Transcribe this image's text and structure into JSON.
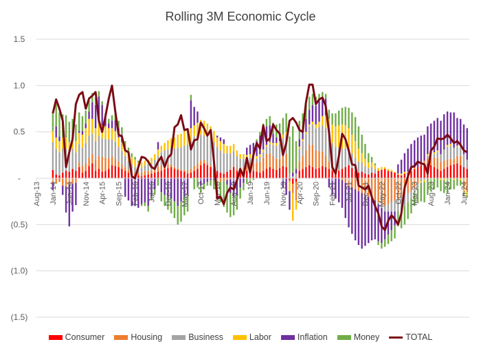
{
  "chart_data": {
    "type": "bar",
    "subtype": "stacked-bar-with-line",
    "title": "Rolling 3M Economic Cycle",
    "xlabel": "",
    "ylabel": "",
    "ylim": [
      -1.5,
      1.5
    ],
    "y_ticks": [
      1.5,
      1.0,
      0.5,
      0,
      -0.5,
      -1.0,
      -1.5
    ],
    "y_tick_labels": [
      "1.5",
      "1.0",
      "0.5",
      "-",
      "(0.5)",
      "(1.0)",
      "(1.5)"
    ],
    "x_tick_labels": [
      "Aug-13",
      "Jan-14",
      "Jun-14",
      "Nov-14",
      "Apr-15",
      "Sep-15",
      "Feb-16",
      "Jul-16",
      "Dec-16",
      "May-17",
      "Oct-17",
      "Mar-18",
      "Aug-18",
      "Jan-19",
      "Jun-19",
      "Nov-19",
      "Apr-20",
      "Sep-20",
      "Feb-21",
      "Jul-21",
      "Dec-21",
      "May-22",
      "Oct-22",
      "Mar-23",
      "Aug-23",
      "Jan-24",
      "Jun-24"
    ],
    "grid": true,
    "legend_position": "bottom",
    "start_month": "Jan-14",
    "series_colors": {
      "Consumer": "#FF0000",
      "Housing": "#ED7D31",
      "Business": "#A5A5A5",
      "Labor": "#FFC000",
      "Inflation": "#7030A0",
      "Money": "#70AD47",
      "TOTAL": "#7B0A14"
    },
    "series": [
      {
        "name": "Consumer",
        "values": [
          0.09,
          0.04,
          0.03,
          0.06,
          0.08,
          0.07,
          0.1,
          0.08,
          0.12,
          0.06,
          0.08,
          0.13,
          0.16,
          0.08,
          0.1,
          0.07,
          0.08,
          0.1,
          0.14,
          0.13,
          0.12,
          0.1,
          0.08,
          0.06,
          0.05,
          0.04,
          0.03,
          0.02,
          0.03,
          0.04,
          0.05,
          0.06,
          0.07,
          0.08,
          0.1,
          0.11,
          0.12,
          0.1,
          0.09,
          0.08,
          0.07,
          0.05,
          0.06,
          0.08,
          0.1,
          0.14,
          0.16,
          0.14,
          0.12,
          0.1,
          0.08,
          0.06,
          0.05,
          0.07,
          0.09,
          0.12,
          0.08,
          0.06,
          0.07,
          0.08,
          0.1,
          0.08,
          0.07,
          0.06,
          0.08,
          0.1,
          0.12,
          0.1,
          0.09,
          0.11,
          0.13,
          0.12,
          -0.02,
          -0.06,
          -0.04,
          0.08,
          0.1,
          0.12,
          0.14,
          0.12,
          0.1,
          0.11,
          0.13,
          0.12,
          0.1,
          0.08,
          0.07,
          0.08,
          0.1,
          0.12,
          0.14,
          0.11,
          0.08,
          0.06,
          0.07,
          0.05,
          0.04,
          0.06,
          0.05,
          0.08,
          0.09,
          0.1,
          0.08,
          0.07,
          0.06,
          0.04,
          0.03,
          0.05,
          0.06,
          0.08,
          0.1,
          0.12,
          0.14,
          0.15,
          0.16,
          0.14,
          0.12,
          0.1,
          0.08,
          0.1,
          0.12,
          0.14,
          0.15,
          0.16,
          0.14,
          0.12,
          0.1
        ]
      },
      {
        "name": "Housing",
        "values": [
          -0.05,
          -0.06,
          -0.04,
          -0.08,
          -0.09,
          -0.07,
          -0.06,
          -0.05,
          0.05,
          0.07,
          0.08,
          0.09,
          0.1,
          0.12,
          0.14,
          0.16,
          0.14,
          0.12,
          0.1,
          0.08,
          0.06,
          0.05,
          0.04,
          0.03,
          0.02,
          0.02,
          0.03,
          0.04,
          0.05,
          0.04,
          0.03,
          0.04,
          0.05,
          0.06,
          0.05,
          0.04,
          0.03,
          0.02,
          0.02,
          0.01,
          0.02,
          0.03,
          0.04,
          0.05,
          0.06,
          0.05,
          0.04,
          0.03,
          0.02,
          0.01,
          -0.02,
          -0.04,
          -0.03,
          -0.02,
          -0.01,
          0.01,
          0.02,
          0.03,
          0.04,
          0.05,
          0.06,
          0.08,
          0.1,
          0.12,
          0.14,
          0.16,
          0.15,
          0.14,
          0.12,
          0.1,
          0.12,
          0.14,
          -0.02,
          -0.1,
          -0.2,
          0.1,
          0.14,
          0.18,
          0.22,
          0.24,
          0.2,
          0.18,
          0.16,
          0.12,
          0.08,
          0.04,
          0.02,
          0.01,
          -0.02,
          -0.05,
          -0.08,
          -0.1,
          -0.12,
          -0.14,
          -0.16,
          -0.18,
          -0.2,
          -0.22,
          -0.24,
          -0.26,
          -0.28,
          -0.3,
          -0.28,
          -0.26,
          -0.24,
          -0.22,
          -0.2,
          -0.18,
          -0.16,
          -0.14,
          -0.1,
          -0.06,
          0.02,
          0.04,
          0.06,
          0.08,
          0.1,
          0.12,
          0.1,
          0.09,
          0.08,
          0.07,
          0.06,
          0.08,
          0.1,
          -0.12,
          -0.15
        ]
      },
      {
        "name": "Business",
        "values": [
          0.3,
          0.28,
          0.25,
          0.26,
          0.24,
          0.2,
          0.22,
          0.2,
          0.2,
          0.2,
          0.22,
          0.24,
          0.22,
          0.2,
          0.22,
          0.2,
          0.2,
          0.2,
          0.18,
          0.18,
          0.16,
          0.14,
          0.12,
          0.1,
          0.08,
          0.06,
          0.04,
          0.05,
          0.06,
          0.07,
          0.08,
          0.1,
          0.12,
          0.14,
          0.15,
          0.16,
          0.18,
          0.2,
          0.22,
          0.24,
          0.26,
          0.28,
          0.3,
          0.32,
          0.3,
          0.28,
          0.26,
          0.28,
          0.3,
          0.28,
          0.26,
          0.24,
          0.22,
          0.2,
          0.18,
          0.16,
          0.14,
          0.12,
          0.1,
          0.08,
          0.06,
          0.05,
          0.04,
          0.05,
          0.06,
          0.08,
          0.1,
          0.12,
          0.14,
          0.16,
          0.18,
          0.2,
          0.05,
          0.02,
          0.05,
          0.14,
          0.16,
          0.18,
          0.2,
          0.22,
          0.24,
          0.26,
          0.28,
          0.3,
          0.28,
          0.26,
          0.25,
          0.24,
          0.22,
          0.2,
          0.18,
          0.16,
          0.14,
          0.12,
          0.1,
          0.08,
          0.07,
          0.06,
          0.05,
          -0.02,
          -0.04,
          -0.06,
          -0.08,
          -0.1,
          -0.12,
          -0.14,
          -0.16,
          -0.12,
          -0.1,
          -0.08,
          -0.06,
          -0.04,
          -0.03,
          -0.02,
          0.02,
          0.03,
          0.04,
          0.06,
          0.08,
          0.12,
          0.14,
          0.14,
          0.12,
          0.1,
          0.12,
          0.14,
          0.1
        ]
      },
      {
        "name": "Labor",
        "values": [
          0.12,
          0.12,
          0.12,
          0.12,
          0.12,
          0.12,
          0.12,
          0.12,
          0.12,
          0.14,
          0.16,
          0.18,
          0.16,
          0.14,
          0.14,
          0.14,
          0.14,
          0.12,
          0.12,
          0.12,
          0.1,
          0.1,
          0.1,
          0.09,
          0.08,
          0.08,
          0.07,
          0.06,
          0.05,
          0.05,
          0.06,
          0.06,
          0.07,
          0.07,
          0.08,
          0.1,
          0.1,
          0.12,
          0.14,
          0.15,
          0.16,
          0.16,
          0.14,
          0.12,
          0.14,
          0.16,
          0.16,
          0.14,
          0.12,
          0.12,
          0.1,
          0.1,
          0.1,
          0.08,
          0.08,
          0.08,
          0.06,
          0.05,
          0.05,
          0.04,
          0.04,
          0.03,
          0.03,
          0.03,
          0.03,
          0.02,
          0.02,
          0.02,
          0.03,
          0.03,
          0.04,
          0.04,
          -0.1,
          -0.3,
          -0.1,
          0.02,
          0.02,
          0.02,
          0.02,
          0.03,
          0.04,
          0.06,
          0.1,
          0.14,
          0.18,
          0.2,
          0.22,
          0.24,
          0.26,
          0.25,
          0.22,
          0.2,
          0.18,
          0.14,
          0.1,
          0.08,
          0.06,
          0.05,
          0.04,
          0.03,
          0.03,
          0.02,
          0.02,
          0.02,
          0.01,
          0.01,
          0.02,
          0.02,
          0.01,
          0.01,
          0.01,
          -0.01,
          -0.02,
          -0.02,
          0.02,
          0.02,
          0.02,
          0.02,
          -0.02,
          -0.02,
          0.02,
          0.02,
          -0.02,
          0.01,
          -0.02,
          -0.03,
          -0.04
        ]
      },
      {
        "name": "Inflation",
        "values": [
          -0.08,
          0.12,
          0.05,
          -0.1,
          -0.28,
          -0.45,
          -0.3,
          -0.24,
          0.02,
          0.04,
          0.05,
          0.08,
          0.18,
          0.25,
          0.28,
          0.22,
          0.1,
          0.05,
          0.08,
          0.12,
          0.1,
          0.08,
          -0.2,
          -0.24,
          -0.3,
          -0.3,
          -0.32,
          -0.28,
          -0.26,
          -0.3,
          -0.2,
          -0.12,
          0.08,
          -0.15,
          -0.18,
          -0.2,
          -0.22,
          -0.25,
          -0.3,
          -0.25,
          -0.2,
          -0.18,
          0.3,
          0.2,
          0.12,
          -0.08,
          -0.06,
          -0.04,
          -0.02,
          -0.02,
          0.02,
          0.04,
          0.05,
          -0.05,
          -0.15,
          -0.2,
          -0.18,
          -0.1,
          -0.05,
          0.08,
          0.1,
          0.14,
          0.16,
          0.2,
          0.22,
          0.2,
          0.18,
          0.1,
          0.06,
          0.03,
          -0.1,
          -0.18,
          -0.2,
          0.04,
          0.05,
          0.08,
          0.1,
          0.14,
          0.16,
          0.18,
          0.2,
          0.22,
          0.2,
          0.18,
          -0.1,
          -0.18,
          -0.22,
          -0.26,
          -0.3,
          -0.38,
          -0.45,
          -0.5,
          -0.55,
          -0.58,
          -0.6,
          -0.55,
          -0.5,
          -0.45,
          -0.42,
          -0.4,
          -0.38,
          -0.3,
          -0.25,
          -0.2,
          -0.15,
          0.1,
          0.15,
          0.2,
          0.25,
          0.28,
          0.3,
          0.32,
          0.3,
          0.28,
          0.3,
          0.32,
          0.34,
          0.35,
          0.36,
          0.38,
          0.36,
          0.34,
          0.38,
          0.3,
          0.28,
          0.32,
          0.34
        ]
      },
      {
        "name": "Money",
        "values": [
          0.2,
          0.24,
          0.26,
          0.25,
          0.24,
          0.22,
          0.2,
          0.18,
          0.2,
          0.16,
          0.14,
          0.12,
          0.1,
          0.08,
          0.06,
          0.04,
          0.04,
          0.05,
          0.06,
          0.06,
          0.08,
          0.08,
          0.06,
          0.05,
          0.04,
          0.03,
          0.02,
          -0.02,
          -0.04,
          -0.06,
          -0.04,
          -0.06,
          -0.08,
          -0.1,
          -0.12,
          -0.14,
          -0.16,
          -0.18,
          -0.2,
          -0.22,
          -0.2,
          -0.18,
          0.06,
          -0.12,
          -0.1,
          -0.08,
          -0.06,
          -0.04,
          -0.06,
          -0.1,
          -0.16,
          -0.22,
          -0.28,
          -0.3,
          -0.26,
          -0.2,
          -0.16,
          -0.12,
          -0.08,
          -0.06,
          -0.04,
          -0.02,
          0.02,
          0.04,
          0.06,
          0.08,
          0.1,
          0.12,
          0.14,
          0.16,
          0.18,
          0.2,
          0.4,
          0.5,
          0.3,
          0.2,
          0.18,
          0.16,
          0.14,
          0.12,
          0.1,
          0.08,
          0.06,
          0.05,
          0.1,
          0.12,
          0.14,
          0.16,
          0.18,
          0.2,
          0.22,
          0.24,
          0.26,
          0.24,
          0.2,
          0.16,
          0.1,
          0.06,
          0.02,
          -0.04,
          -0.06,
          -0.08,
          -0.1,
          -0.12,
          -0.14,
          -0.16,
          -0.18,
          -0.2,
          -0.18,
          -0.16,
          -0.14,
          -0.16,
          -0.2,
          -0.22,
          -0.18,
          -0.14,
          -0.12,
          -0.1,
          -0.12,
          -0.14,
          -0.16,
          -0.12,
          -0.1,
          -0.08,
          -0.06,
          -0.04,
          -0.02
        ]
      },
      {
        "name": "TOTAL",
        "values": [
          0.7,
          0.85,
          0.75,
          0.62,
          0.12,
          0.28,
          0.42,
          0.8,
          0.9,
          0.93,
          0.75,
          0.86,
          0.89,
          0.93,
          0.62,
          0.5,
          0.67,
          0.86,
          1.0,
          0.72,
          0.47,
          0.45,
          0.3,
          0.28,
          0.02,
          0.0,
          0.12,
          0.23,
          0.22,
          0.18,
          0.12,
          0.1,
          0.18,
          0.23,
          0.12,
          0.22,
          0.26,
          0.55,
          0.58,
          0.68,
          0.52,
          0.53,
          0.31,
          0.41,
          0.42,
          0.6,
          0.54,
          0.46,
          0.52,
          0.18,
          -0.22,
          -0.2,
          -0.28,
          -0.16,
          -0.1,
          -0.12,
          -0.02,
          0.1,
          0.02,
          0.22,
          0.06,
          0.25,
          0.38,
          0.32,
          0.57,
          0.4,
          0.43,
          0.58,
          0.52,
          0.48,
          0.25,
          0.38,
          0.62,
          0.65,
          0.6,
          0.52,
          0.5,
          0.82,
          1.01,
          1.01,
          0.8,
          0.85,
          0.87,
          0.78,
          0.5,
          0.12,
          0.05,
          0.24,
          0.48,
          0.42,
          0.3,
          0.15,
          0.14,
          -0.08,
          -0.1,
          -0.12,
          -0.08,
          -0.2,
          -0.3,
          -0.38,
          -0.52,
          -0.56,
          -0.46,
          -0.4,
          -0.44,
          -0.5,
          -0.38,
          -0.1,
          0.02,
          0.12,
          0.13,
          0.18,
          0.16,
          0.15,
          0.05,
          0.3,
          0.34,
          0.43,
          0.42,
          0.43,
          0.47,
          0.43,
          0.38,
          0.4,
          0.36,
          0.3,
          0.28
        ]
      }
    ]
  },
  "legend": {
    "items": [
      {
        "label": "Consumer",
        "color": "#FF0000",
        "kind": "bar"
      },
      {
        "label": "Housing",
        "color": "#ED7D31",
        "kind": "bar"
      },
      {
        "label": "Business",
        "color": "#A5A5A5",
        "kind": "bar"
      },
      {
        "label": "Labor",
        "color": "#FFC000",
        "kind": "bar"
      },
      {
        "label": "Inflation",
        "color": "#7030A0",
        "kind": "bar"
      },
      {
        "label": "Money",
        "color": "#70AD47",
        "kind": "bar"
      },
      {
        "label": "TOTAL",
        "color": "#7B0A14",
        "kind": "line"
      }
    ]
  }
}
